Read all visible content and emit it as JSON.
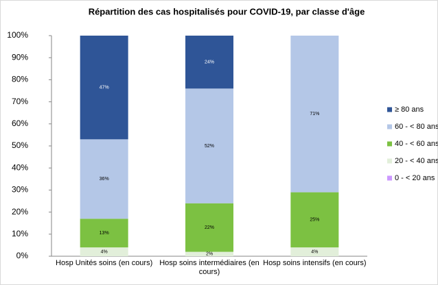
{
  "chart_data": {
    "type": "stacked_bar",
    "title": "Répartition des cas hospitalisés pour COVID-19, par classe d'âge",
    "categories": [
      "Hosp Unités soins (en cours)",
      "Hosp soins intermédiaires (en cours)",
      "Hosp soins intensifs (en cours)"
    ],
    "series": [
      {
        "name": "0 - < 20 ans",
        "color": "#cc99ff",
        "values": [
          0,
          0,
          0
        ],
        "value_labels": [
          null,
          null,
          null
        ]
      },
      {
        "name": "20 - < 40 ans",
        "color": "#e2efda",
        "values": [
          4,
          2,
          4
        ],
        "value_labels": [
          "4%",
          "2%",
          "4%"
        ]
      },
      {
        "name": "40 - < 60 ans",
        "color": "#7cc142",
        "values": [
          13,
          22,
          25
        ],
        "value_labels": [
          "13%",
          "22%",
          "25%"
        ]
      },
      {
        "name": "60 - < 80 ans",
        "color": "#b4c7e7",
        "values": [
          36,
          52,
          71
        ],
        "value_labels": [
          "36%",
          "52%",
          "71%"
        ]
      },
      {
        "name": "≥ 80 ans",
        "color": "#2f5597",
        "values": [
          47,
          24,
          0
        ],
        "value_labels": [
          "47%",
          "24%",
          null
        ]
      }
    ],
    "ylim": [
      0,
      100
    ],
    "yticks": [
      {
        "value": 0,
        "label": "0%"
      },
      {
        "value": 10,
        "label": "10%"
      },
      {
        "value": 20,
        "label": "20%"
      },
      {
        "value": 30,
        "label": "30%"
      },
      {
        "value": 40,
        "label": "40%"
      },
      {
        "value": 50,
        "label": "50%"
      },
      {
        "value": 60,
        "label": "60%"
      },
      {
        "value": 70,
        "label": "70%"
      },
      {
        "value": 80,
        "label": "80%"
      },
      {
        "value": 90,
        "label": "90%"
      },
      {
        "value": 100,
        "label": "100%"
      }
    ],
    "legend": "right",
    "grid": false
  }
}
